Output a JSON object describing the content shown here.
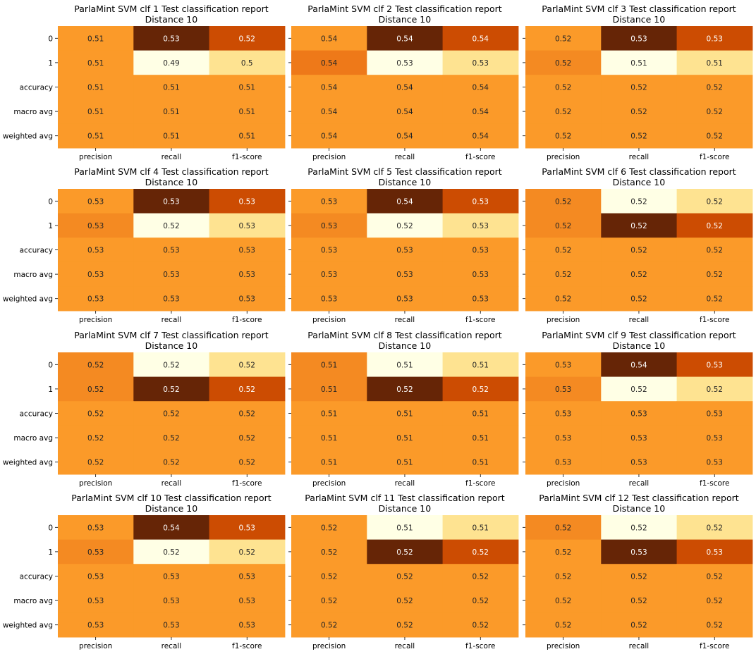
{
  "chart_data": [
    {
      "type": "heatmap",
      "title": "ParlaMint SVM clf 1 Test classification report",
      "subtitle": "Distance 10",
      "rows": [
        "0",
        "1",
        "accuracy",
        "macro avg",
        "weighted avg"
      ],
      "columns": [
        "precision",
        "recall",
        "f1-score"
      ],
      "values": [
        [
          0.51,
          0.53,
          0.52
        ],
        [
          0.51,
          0.49,
          0.5
        ],
        [
          0.51,
          0.51,
          0.51
        ],
        [
          0.51,
          0.51,
          0.51
        ],
        [
          0.51,
          0.51,
          0.51
        ]
      ],
      "colors": [
        [
          "#fb9a29",
          "#662506",
          "#cc4c02"
        ],
        [
          "#fb9a29",
          "#ffffe5",
          "#fee391"
        ],
        [
          "#fb9a29",
          "#fb9a29",
          "#fb9a29"
        ],
        [
          "#fb9a29",
          "#fb9a29",
          "#fb9a29"
        ],
        [
          "#fb9a29",
          "#fb9a29",
          "#fb9a29"
        ]
      ],
      "labels": [
        [
          "0.51",
          "0.53",
          "0.52"
        ],
        [
          "0.51",
          "0.49",
          "0.5"
        ],
        [
          "0.51",
          "0.51",
          "0.51"
        ],
        [
          "0.51",
          "0.51",
          "0.51"
        ],
        [
          "0.51",
          "0.51",
          "0.51"
        ]
      ]
    },
    {
      "type": "heatmap",
      "title": "ParlaMint SVM clf 2 Test classification report",
      "subtitle": "Distance 10",
      "rows": [
        "0",
        "1",
        "accuracy",
        "macro avg",
        "weighted avg"
      ],
      "columns": [
        "precision",
        "recall",
        "f1-score"
      ],
      "values": [
        [
          0.54,
          0.54,
          0.54
        ],
        [
          0.54,
          0.53,
          0.53
        ],
        [
          0.54,
          0.54,
          0.54
        ],
        [
          0.54,
          0.54,
          0.54
        ],
        [
          0.54,
          0.54,
          0.54
        ]
      ],
      "colors": [
        [
          "#fb9a29",
          "#662506",
          "#cc4c02"
        ],
        [
          "#ee7919",
          "#ffffe5",
          "#fee391"
        ],
        [
          "#fb9a29",
          "#fb9a29",
          "#fb9a29"
        ],
        [
          "#fb9a29",
          "#fb9a29",
          "#fb9a29"
        ],
        [
          "#fb9a29",
          "#fb9a29",
          "#fb9a29"
        ]
      ],
      "labels": [
        [
          "0.54",
          "0.54",
          "0.54"
        ],
        [
          "0.54",
          "0.53",
          "0.53"
        ],
        [
          "0.54",
          "0.54",
          "0.54"
        ],
        [
          "0.54",
          "0.54",
          "0.54"
        ],
        [
          "0.54",
          "0.54",
          "0.54"
        ]
      ]
    },
    {
      "type": "heatmap",
      "title": "ParlaMint SVM clf 3 Test classification report",
      "subtitle": "Distance 10",
      "rows": [
        "0",
        "1",
        "accuracy",
        "macro avg",
        "weighted avg"
      ],
      "columns": [
        "precision",
        "recall",
        "f1-score"
      ],
      "values": [
        [
          0.52,
          0.53,
          0.53
        ],
        [
          0.52,
          0.51,
          0.51
        ],
        [
          0.52,
          0.52,
          0.52
        ],
        [
          0.52,
          0.52,
          0.52
        ],
        [
          0.52,
          0.52,
          0.52
        ]
      ],
      "colors": [
        [
          "#fb9a29",
          "#662506",
          "#cc4c02"
        ],
        [
          "#f48a22",
          "#ffffe5",
          "#fee391"
        ],
        [
          "#fb9a29",
          "#fb9a29",
          "#fb9a29"
        ],
        [
          "#fb9a29",
          "#fb9a29",
          "#fb9a29"
        ],
        [
          "#fb9a29",
          "#fb9a29",
          "#fb9a29"
        ]
      ],
      "labels": [
        [
          "0.52",
          "0.53",
          "0.53"
        ],
        [
          "0.52",
          "0.51",
          "0.51"
        ],
        [
          "0.52",
          "0.52",
          "0.52"
        ],
        [
          "0.52",
          "0.52",
          "0.52"
        ],
        [
          "0.52",
          "0.52",
          "0.52"
        ]
      ]
    },
    {
      "type": "heatmap",
      "title": "ParlaMint SVM clf 4 Test classification report",
      "subtitle": "Distance 10",
      "rows": [
        "0",
        "1",
        "accuracy",
        "macro avg",
        "weighted avg"
      ],
      "columns": [
        "precision",
        "recall",
        "f1-score"
      ],
      "values": [
        [
          0.53,
          0.53,
          0.53
        ],
        [
          0.53,
          0.52,
          0.53
        ],
        [
          0.53,
          0.53,
          0.53
        ],
        [
          0.53,
          0.53,
          0.53
        ],
        [
          0.53,
          0.53,
          0.53
        ]
      ],
      "colors": [
        [
          "#fb9a29",
          "#662506",
          "#cc4c02"
        ],
        [
          "#f48a22",
          "#ffffe5",
          "#fee391"
        ],
        [
          "#fb9a29",
          "#fb9a29",
          "#fb9a29"
        ],
        [
          "#fb9a29",
          "#fb9a29",
          "#fb9a29"
        ],
        [
          "#fb9a29",
          "#fb9a29",
          "#fb9a29"
        ]
      ],
      "labels": [
        [
          "0.53",
          "0.53",
          "0.53"
        ],
        [
          "0.53",
          "0.52",
          "0.53"
        ],
        [
          "0.53",
          "0.53",
          "0.53"
        ],
        [
          "0.53",
          "0.53",
          "0.53"
        ],
        [
          "0.53",
          "0.53",
          "0.53"
        ]
      ]
    },
    {
      "type": "heatmap",
      "title": "ParlaMint SVM clf 5 Test classification report",
      "subtitle": "Distance 10",
      "rows": [
        "0",
        "1",
        "accuracy",
        "macro avg",
        "weighted avg"
      ],
      "columns": [
        "precision",
        "recall",
        "f1-score"
      ],
      "values": [
        [
          0.53,
          0.54,
          0.53
        ],
        [
          0.53,
          0.52,
          0.53
        ],
        [
          0.53,
          0.53,
          0.53
        ],
        [
          0.53,
          0.53,
          0.53
        ],
        [
          0.53,
          0.53,
          0.53
        ]
      ],
      "colors": [
        [
          "#fb9a29",
          "#662506",
          "#cc4c02"
        ],
        [
          "#f48a22",
          "#ffffe5",
          "#fee391"
        ],
        [
          "#fb9a29",
          "#fb9a29",
          "#fb9a29"
        ],
        [
          "#fb9a29",
          "#fb9a29",
          "#fb9a29"
        ],
        [
          "#fb9a29",
          "#fb9a29",
          "#fb9a29"
        ]
      ],
      "labels": [
        [
          "0.53",
          "0.54",
          "0.53"
        ],
        [
          "0.53",
          "0.52",
          "0.53"
        ],
        [
          "0.53",
          "0.53",
          "0.53"
        ],
        [
          "0.53",
          "0.53",
          "0.53"
        ],
        [
          "0.53",
          "0.53",
          "0.53"
        ]
      ]
    },
    {
      "type": "heatmap",
      "title": "ParlaMint SVM clf 6 Test classification report",
      "subtitle": "Distance 10",
      "rows": [
        "0",
        "1",
        "accuracy",
        "macro avg",
        "weighted avg"
      ],
      "columns": [
        "precision",
        "recall",
        "f1-score"
      ],
      "values": [
        [
          0.52,
          0.52,
          0.52
        ],
        [
          0.52,
          0.52,
          0.52
        ],
        [
          0.52,
          0.52,
          0.52
        ],
        [
          0.52,
          0.52,
          0.52
        ],
        [
          0.52,
          0.52,
          0.52
        ]
      ],
      "colors": [
        [
          "#f48a22",
          "#ffffe5",
          "#fee391"
        ],
        [
          "#f48a22",
          "#662506",
          "#cc4c02"
        ],
        [
          "#fb9a29",
          "#fb9a29",
          "#fb9a29"
        ],
        [
          "#fb9a29",
          "#fb9a29",
          "#fb9a29"
        ],
        [
          "#fb9a29",
          "#fb9a29",
          "#fb9a29"
        ]
      ],
      "labels": [
        [
          "0.52",
          "0.52",
          "0.52"
        ],
        [
          "0.52",
          "0.52",
          "0.52"
        ],
        [
          "0.52",
          "0.52",
          "0.52"
        ],
        [
          "0.52",
          "0.52",
          "0.52"
        ],
        [
          "0.52",
          "0.52",
          "0.52"
        ]
      ]
    },
    {
      "type": "heatmap",
      "title": "ParlaMint SVM clf 7 Test classification report",
      "subtitle": "Distance 10",
      "rows": [
        "0",
        "1",
        "accuracy",
        "macro avg",
        "weighted avg"
      ],
      "columns": [
        "precision",
        "recall",
        "f1-score"
      ],
      "values": [
        [
          0.52,
          0.52,
          0.52
        ],
        [
          0.52,
          0.52,
          0.52
        ],
        [
          0.52,
          0.52,
          0.52
        ],
        [
          0.52,
          0.52,
          0.52
        ],
        [
          0.52,
          0.52,
          0.52
        ]
      ],
      "colors": [
        [
          "#f48a22",
          "#ffffe5",
          "#fee391"
        ],
        [
          "#f48a22",
          "#662506",
          "#cc4c02"
        ],
        [
          "#fb9a29",
          "#fb9a29",
          "#fb9a29"
        ],
        [
          "#fb9a29",
          "#fb9a29",
          "#fb9a29"
        ],
        [
          "#fb9a29",
          "#fb9a29",
          "#fb9a29"
        ]
      ],
      "labels": [
        [
          "0.52",
          "0.52",
          "0.52"
        ],
        [
          "0.52",
          "0.52",
          "0.52"
        ],
        [
          "0.52",
          "0.52",
          "0.52"
        ],
        [
          "0.52",
          "0.52",
          "0.52"
        ],
        [
          "0.52",
          "0.52",
          "0.52"
        ]
      ]
    },
    {
      "type": "heatmap",
      "title": "ParlaMint SVM clf 8 Test classification report",
      "subtitle": "Distance 10",
      "rows": [
        "0",
        "1",
        "accuracy",
        "macro avg",
        "weighted avg"
      ],
      "columns": [
        "precision",
        "recall",
        "f1-score"
      ],
      "values": [
        [
          0.51,
          0.51,
          0.51
        ],
        [
          0.51,
          0.52,
          0.52
        ],
        [
          0.51,
          0.51,
          0.51
        ],
        [
          0.51,
          0.51,
          0.51
        ],
        [
          0.51,
          0.51,
          0.51
        ]
      ],
      "colors": [
        [
          "#f48a22",
          "#ffffe5",
          "#fee391"
        ],
        [
          "#f48a22",
          "#662506",
          "#cc4c02"
        ],
        [
          "#fb9a29",
          "#fb9a29",
          "#fb9a29"
        ],
        [
          "#fb9a29",
          "#fb9a29",
          "#fb9a29"
        ],
        [
          "#fb9a29",
          "#fb9a29",
          "#fb9a29"
        ]
      ],
      "labels": [
        [
          "0.51",
          "0.51",
          "0.51"
        ],
        [
          "0.51",
          "0.52",
          "0.52"
        ],
        [
          "0.51",
          "0.51",
          "0.51"
        ],
        [
          "0.51",
          "0.51",
          "0.51"
        ],
        [
          "0.51",
          "0.51",
          "0.51"
        ]
      ]
    },
    {
      "type": "heatmap",
      "title": "ParlaMint SVM clf 9 Test classification report",
      "subtitle": "Distance 10",
      "rows": [
        "0",
        "1",
        "accuracy",
        "macro avg",
        "weighted avg"
      ],
      "columns": [
        "precision",
        "recall",
        "f1-score"
      ],
      "values": [
        [
          0.53,
          0.54,
          0.53
        ],
        [
          0.53,
          0.52,
          0.52
        ],
        [
          0.53,
          0.53,
          0.53
        ],
        [
          0.53,
          0.53,
          0.53
        ],
        [
          0.53,
          0.53,
          0.53
        ]
      ],
      "colors": [
        [
          "#fb9a29",
          "#662506",
          "#cc4c02"
        ],
        [
          "#f48a22",
          "#ffffe5",
          "#fee391"
        ],
        [
          "#fb9a29",
          "#fb9a29",
          "#fb9a29"
        ],
        [
          "#fb9a29",
          "#fb9a29",
          "#fb9a29"
        ],
        [
          "#fb9a29",
          "#fb9a29",
          "#fb9a29"
        ]
      ],
      "labels": [
        [
          "0.53",
          "0.54",
          "0.53"
        ],
        [
          "0.53",
          "0.52",
          "0.52"
        ],
        [
          "0.53",
          "0.53",
          "0.53"
        ],
        [
          "0.53",
          "0.53",
          "0.53"
        ],
        [
          "0.53",
          "0.53",
          "0.53"
        ]
      ]
    },
    {
      "type": "heatmap",
      "title": "ParlaMint SVM clf 10 Test classification report",
      "subtitle": "Distance 10",
      "rows": [
        "0",
        "1",
        "accuracy",
        "macro avg",
        "weighted avg"
      ],
      "columns": [
        "precision",
        "recall",
        "f1-score"
      ],
      "values": [
        [
          0.53,
          0.54,
          0.53
        ],
        [
          0.53,
          0.52,
          0.52
        ],
        [
          0.53,
          0.53,
          0.53
        ],
        [
          0.53,
          0.53,
          0.53
        ],
        [
          0.53,
          0.53,
          0.53
        ]
      ],
      "colors": [
        [
          "#fb9a29",
          "#662506",
          "#cc4c02"
        ],
        [
          "#f48a22",
          "#ffffe5",
          "#fee391"
        ],
        [
          "#fb9a29",
          "#fb9a29",
          "#fb9a29"
        ],
        [
          "#fb9a29",
          "#fb9a29",
          "#fb9a29"
        ],
        [
          "#fb9a29",
          "#fb9a29",
          "#fb9a29"
        ]
      ],
      "labels": [
        [
          "0.53",
          "0.54",
          "0.53"
        ],
        [
          "0.53",
          "0.52",
          "0.52"
        ],
        [
          "0.53",
          "0.53",
          "0.53"
        ],
        [
          "0.53",
          "0.53",
          "0.53"
        ],
        [
          "0.53",
          "0.53",
          "0.53"
        ]
      ]
    },
    {
      "type": "heatmap",
      "title": "ParlaMint SVM clf 11 Test classification report",
      "subtitle": "Distance 10",
      "rows": [
        "0",
        "1",
        "accuracy",
        "macro avg",
        "weighted avg"
      ],
      "columns": [
        "precision",
        "recall",
        "f1-score"
      ],
      "values": [
        [
          0.52,
          0.51,
          0.51
        ],
        [
          0.52,
          0.52,
          0.52
        ],
        [
          0.52,
          0.52,
          0.52
        ],
        [
          0.52,
          0.52,
          0.52
        ],
        [
          0.52,
          0.52,
          0.52
        ]
      ],
      "colors": [
        [
          "#fb9a29",
          "#ffffe5",
          "#fee391"
        ],
        [
          "#fb9a29",
          "#662506",
          "#cc4c02"
        ],
        [
          "#fb9a29",
          "#fb9a29",
          "#fb9a29"
        ],
        [
          "#fb9a29",
          "#fb9a29",
          "#fb9a29"
        ],
        [
          "#fb9a29",
          "#fb9a29",
          "#fb9a29"
        ]
      ],
      "labels": [
        [
          "0.52",
          "0.51",
          "0.51"
        ],
        [
          "0.52",
          "0.52",
          "0.52"
        ],
        [
          "0.52",
          "0.52",
          "0.52"
        ],
        [
          "0.52",
          "0.52",
          "0.52"
        ],
        [
          "0.52",
          "0.52",
          "0.52"
        ]
      ]
    },
    {
      "type": "heatmap",
      "title": "ParlaMint SVM clf 12 Test classification report",
      "subtitle": "Distance 10",
      "rows": [
        "0",
        "1",
        "accuracy",
        "macro avg",
        "weighted avg"
      ],
      "columns": [
        "precision",
        "recall",
        "f1-score"
      ],
      "values": [
        [
          0.52,
          0.52,
          0.52
        ],
        [
          0.52,
          0.53,
          0.53
        ],
        [
          0.52,
          0.52,
          0.52
        ],
        [
          0.52,
          0.52,
          0.52
        ],
        [
          0.52,
          0.52,
          0.52
        ]
      ],
      "colors": [
        [
          "#f48a22",
          "#ffffe5",
          "#fee391"
        ],
        [
          "#fb9a29",
          "#662506",
          "#cc4c02"
        ],
        [
          "#fb9a29",
          "#fb9a29",
          "#fb9a29"
        ],
        [
          "#fb9a29",
          "#fb9a29",
          "#fb9a29"
        ],
        [
          "#fb9a29",
          "#fb9a29",
          "#fb9a29"
        ]
      ],
      "labels": [
        [
          "0.52",
          "0.52",
          "0.52"
        ],
        [
          "0.52",
          "0.53",
          "0.53"
        ],
        [
          "0.52",
          "0.52",
          "0.52"
        ],
        [
          "0.52",
          "0.52",
          "0.52"
        ],
        [
          "0.52",
          "0.52",
          "0.52"
        ]
      ]
    }
  ]
}
